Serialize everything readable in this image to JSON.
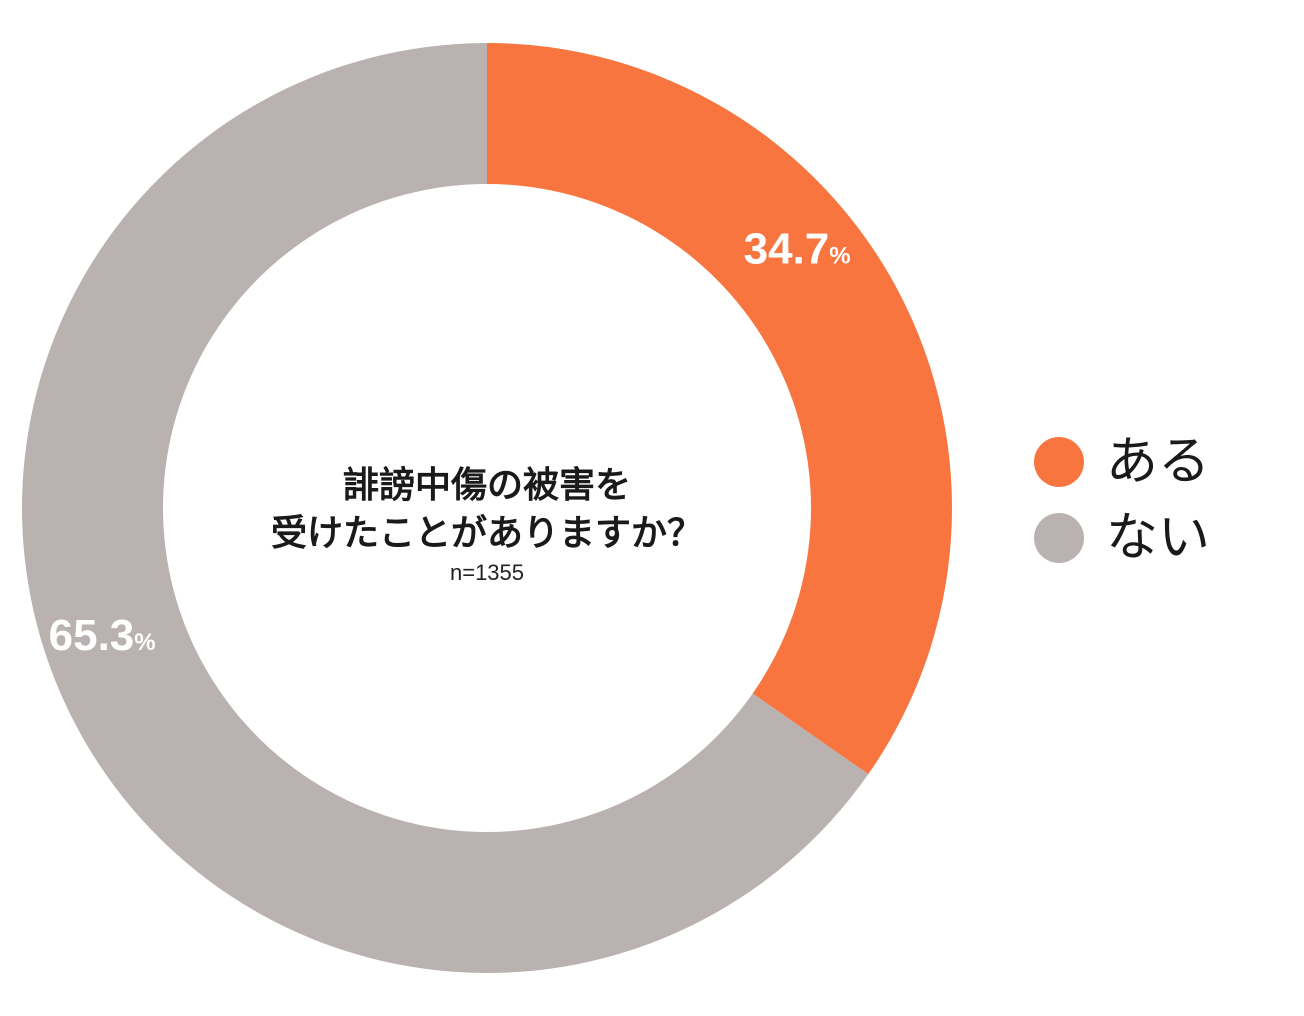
{
  "chart_data": {
    "type": "pie",
    "style": "donut",
    "title_lines": [
      "誹謗中傷の被害を",
      "受けたことがありますか？"
    ],
    "subtitle": "n=1355",
    "slices": [
      {
        "label": "ある",
        "value": 34.7,
        "display": "34.7",
        "unit": "%",
        "color": "#f9753f"
      },
      {
        "label": "ない",
        "value": 65.3,
        "display": "65.3",
        "unit": "%",
        "color": "#bab2b0"
      }
    ],
    "start": "top",
    "direction": "clockwise",
    "legend_position": "right"
  }
}
